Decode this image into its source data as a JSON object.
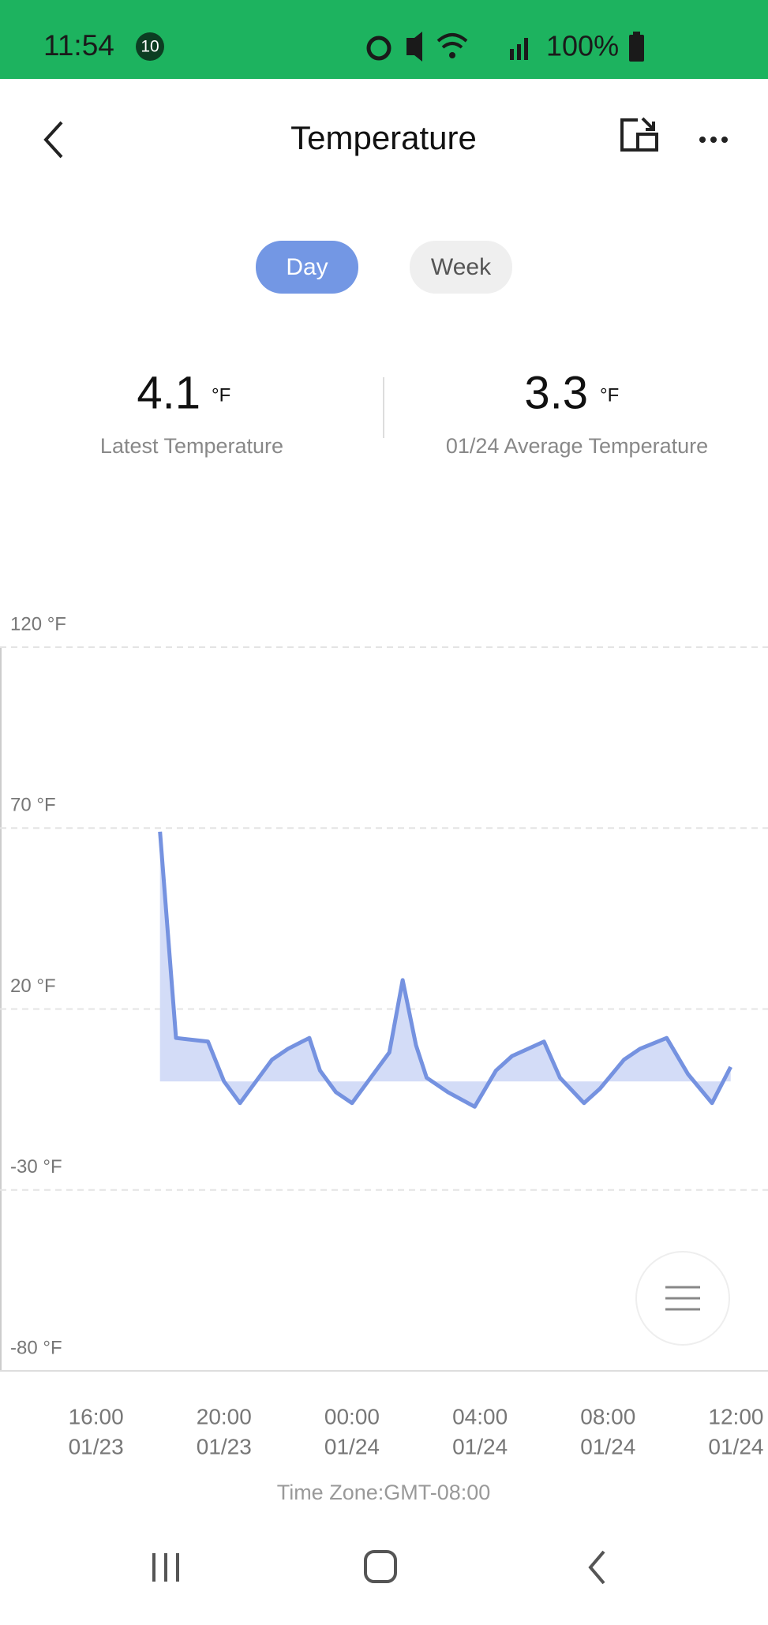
{
  "status_bar": {
    "time": "11:54",
    "badge": "10",
    "battery": "100%"
  },
  "header": {
    "title": "Temperature"
  },
  "tabs": [
    "Day",
    "Week"
  ],
  "stats": [
    {
      "value": "4.1",
      "unit": "°F",
      "label": "Latest Temperature"
    },
    {
      "value": "3.3",
      "unit": "°F",
      "label": "01/24 Average Temperature"
    }
  ],
  "chart_data": {
    "type": "area",
    "color": "#7592e0",
    "fill_color": "#d3dcf7",
    "xlim": [
      "01/23 13:00",
      "01/24 13:00"
    ],
    "xticks": [
      {
        "value": "01/23 16:00",
        "label": [
          "16:00",
          "01/23"
        ]
      },
      {
        "value": "01/23 20:00",
        "label": [
          "20:00",
          "01/23"
        ]
      },
      {
        "value": "01/24 00:00",
        "label": [
          "00:00",
          "01/24"
        ]
      },
      {
        "value": "01/24 04:00",
        "label": [
          "04:00",
          "01/24"
        ]
      },
      {
        "value": "01/24 08:00",
        "label": [
          "08:00",
          "01/24"
        ]
      },
      {
        "value": "01/24 12:00",
        "label": [
          "12:00",
          "01/24"
        ]
      }
    ],
    "ylim": [
      -80,
      120
    ],
    "yticks": [
      {
        "value": -80,
        "label": "-80 °F"
      },
      {
        "value": -30,
        "label": "-30 °F"
      },
      {
        "value": 20,
        "label": "20 °F"
      },
      {
        "value": 70,
        "label": "70 °F"
      },
      {
        "value": 120,
        "label": "120 °F"
      }
    ],
    "grid": true,
    "x": [
      "01/23 18:00",
      "01/23 18:30",
      "01/23 19:00",
      "01/23 19:30",
      "01/23 20:00",
      "01/23 20:30",
      "01/23 21:00",
      "01/23 21:30",
      "01/23 22:00",
      "01/23 22:40",
      "01/23 23:00",
      "01/23 23:30",
      "01/24 00:00",
      "01/24 00:30",
      "01/24 01:10",
      "01/24 01:35",
      "01/24 02:00",
      "01/24 02:20",
      "01/24 03:00",
      "01/24 03:50",
      "01/24 04:30",
      "01/24 05:00",
      "01/24 06:00",
      "01/24 06:30",
      "01/24 07:15",
      "01/24 07:45",
      "01/24 08:30",
      "01/24 09:00",
      "01/24 09:50",
      "01/24 10:30",
      "01/24 11:15",
      "01/24 11:50"
    ],
    "values": [
      69,
      12,
      11.5,
      11,
      0,
      -6,
      0,
      6,
      9,
      12,
      3,
      -3,
      -6,
      0,
      8,
      28,
      10,
      1,
      -3,
      -7,
      3,
      7,
      11,
      1,
      -6,
      -2,
      6,
      9,
      12,
      2,
      -6,
      4
    ],
    "footnote": "Time Zone:GMT-08:00"
  }
}
